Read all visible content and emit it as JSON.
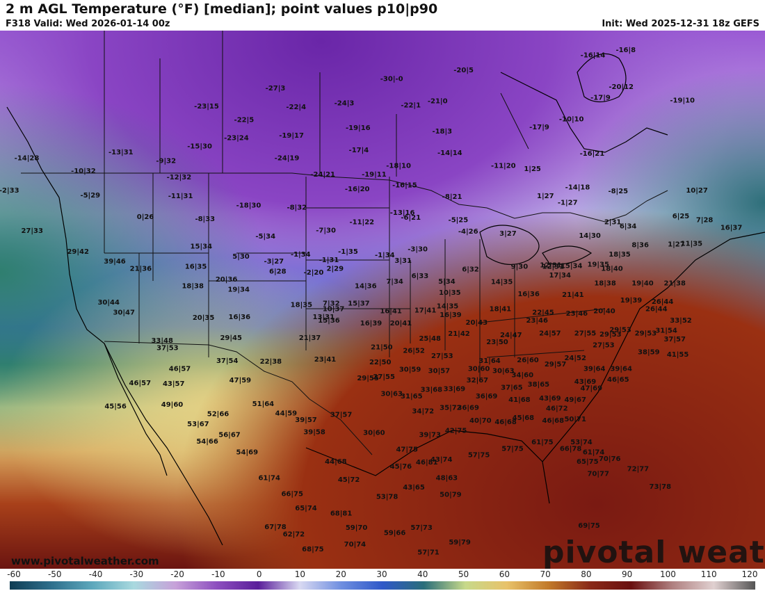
{
  "header": {
    "title": "2 m AGL Temperature (°F) [median]; point values p10|p90",
    "valid": "F318 Valid: Wed 2026-01-14 00z",
    "init": "Init: Wed 2025-12-31 18z GEFS"
  },
  "branding": {
    "website": "www.pivotalweather.com",
    "logo": "pivotal weather"
  },
  "legend": {
    "ticks": [
      "-60",
      "-50",
      "-40",
      "-30",
      "-20",
      "-10",
      "0",
      "10",
      "20",
      "30",
      "40",
      "50",
      "60",
      "70",
      "80",
      "90",
      "100",
      "110",
      "120"
    ],
    "colors": [
      "#0f3d54",
      "#2e6f8c",
      "#5da8bc",
      "#a9d9df",
      "#c7a1d9",
      "#8d4fbf",
      "#5a1e9a",
      "#d9d9f2",
      "#6f8fe0",
      "#2f58c8",
      "#2a6e7a",
      "#c7d98a",
      "#e8c26a",
      "#c27a2a",
      "#8a2a18",
      "#6a1010",
      "#b08080",
      "#e0d0d0",
      "#555555"
    ]
  },
  "colors": {
    "arctic": "#7a2fb3",
    "cold": "#4b6fd8",
    "cool": "#9fb6ec",
    "mild": "#3d8a78",
    "warm": "#d8c37a",
    "hot": "#a8401a",
    "ocean_hot": "#7a1a12"
  },
  "points": [
    {
      "text": "-14|28",
      "x": -156.5,
      "y": 60.7
    },
    {
      "text": "-23|15",
      "x": -133.0,
      "y": 68.4
    },
    {
      "text": "-27|3",
      "x": -124.0,
      "y": 71.1
    },
    {
      "text": "-22|4",
      "x": -121.3,
      "y": 68.3
    },
    {
      "text": "-22|5",
      "x": -128.1,
      "y": 66.4
    },
    {
      "text": "-24|3",
      "x": -115.0,
      "y": 68.9
    },
    {
      "text": "-30|-0",
      "x": -108.8,
      "y": 72.5
    },
    {
      "text": "-20|5",
      "x": -99.4,
      "y": 73.8
    },
    {
      "text": "-16|14",
      "x": -82.5,
      "y": 76.0
    },
    {
      "text": "-16|8",
      "x": -78.2,
      "y": 76.8
    },
    {
      "text": "-13|31",
      "x": -144.2,
      "y": 61.6
    },
    {
      "text": "-10|32",
      "x": -149.1,
      "y": 58.8
    },
    {
      "text": "-2|33",
      "x": -158.8,
      "y": 55.9
    },
    {
      "text": "-9|32",
      "x": -138.3,
      "y": 60.3
    },
    {
      "text": "-15|30",
      "x": -133.9,
      "y": 62.5
    },
    {
      "text": "-23|24",
      "x": -129.1,
      "y": 63.7
    },
    {
      "text": "-19|17",
      "x": -121.9,
      "y": 64.1
    },
    {
      "text": "-19|16",
      "x": -113.2,
      "y": 65.2
    },
    {
      "text": "-22|1",
      "x": -106.3,
      "y": 68.6
    },
    {
      "text": "-21|0",
      "x": -102.8,
      "y": 69.2
    },
    {
      "text": "-17|9",
      "x": -81.5,
      "y": 69.7
    },
    {
      "text": "-20|12",
      "x": -78.8,
      "y": 71.3
    },
    {
      "text": "-19|10",
      "x": -70.8,
      "y": 69.3
    },
    {
      "text": "-10|10",
      "x": -85.3,
      "y": 66.5
    },
    {
      "text": "-17|4",
      "x": -113.1,
      "y": 61.9
    },
    {
      "text": "-18|3",
      "x": -102.2,
      "y": 64.7
    },
    {
      "text": "-5|29",
      "x": -148.2,
      "y": 55.2
    },
    {
      "text": "-12|32",
      "x": -136.6,
      "y": 57.9
    },
    {
      "text": "-24|19",
      "x": -122.5,
      "y": 60.7
    },
    {
      "text": "-17|9",
      "x": -89.5,
      "y": 65.3
    },
    {
      "text": "27|33",
      "x": -155.8,
      "y": 49.9
    },
    {
      "text": "-11|31",
      "x": -136.4,
      "y": 55.1
    },
    {
      "text": "0|26",
      "x": -141.0,
      "y": 52.0
    },
    {
      "text": "-24|21",
      "x": -117.8,
      "y": 58.3
    },
    {
      "text": "-8|33",
      "x": -133.2,
      "y": 51.7
    },
    {
      "text": "-18|30",
      "x": -127.5,
      "y": 53.7
    },
    {
      "text": "-19|11",
      "x": -111.1,
      "y": 58.3
    },
    {
      "text": "-18|10",
      "x": -107.9,
      "y": 59.6
    },
    {
      "text": "-14|14",
      "x": -101.2,
      "y": 61.5
    },
    {
      "text": "-16|21",
      "x": -82.6,
      "y": 61.4
    },
    {
      "text": "10|27",
      "x": -68.9,
      "y": 55.9
    },
    {
      "text": "29|42",
      "x": -149.8,
      "y": 46.8
    },
    {
      "text": "39|46",
      "x": -145.0,
      "y": 45.4
    },
    {
      "text": "-8|32",
      "x": -121.2,
      "y": 53.4
    },
    {
      "text": "-16|20",
      "x": -113.3,
      "y": 56.1
    },
    {
      "text": "-16|15",
      "x": -107.1,
      "y": 56.7
    },
    {
      "text": "-11|20",
      "x": -94.2,
      "y": 59.6
    },
    {
      "text": "1|25",
      "x": -90.4,
      "y": 59.1
    },
    {
      "text": "-14|18",
      "x": -84.5,
      "y": 56.4
    },
    {
      "text": "-8|25",
      "x": -79.2,
      "y": 55.8
    },
    {
      "text": "6|25",
      "x": -71.0,
      "y": 52.1
    },
    {
      "text": "7|28",
      "x": -67.9,
      "y": 51.5
    },
    {
      "text": "15|34",
      "x": -133.7,
      "y": 47.6
    },
    {
      "text": "-5|34",
      "x": -125.3,
      "y": 49.1
    },
    {
      "text": "-7|30",
      "x": -117.4,
      "y": 50.0
    },
    {
      "text": "-11|22",
      "x": -112.7,
      "y": 51.2
    },
    {
      "text": "-13|16",
      "x": -107.4,
      "y": 52.6
    },
    {
      "text": "-8|21",
      "x": -100.9,
      "y": 55.0
    },
    {
      "text": "1|27",
      "x": -88.7,
      "y": 55.1
    },
    {
      "text": "-1|27",
      "x": -85.8,
      "y": 54.1
    },
    {
      "text": "2|31",
      "x": -79.9,
      "y": 51.2
    },
    {
      "text": "1|27",
      "x": -71.6,
      "y": 47.9
    },
    {
      "text": "21|36",
      "x": -141.6,
      "y": 44.3
    },
    {
      "text": "16|35",
      "x": -134.4,
      "y": 44.6
    },
    {
      "text": "5|30",
      "x": -128.5,
      "y": 46.1
    },
    {
      "text": "-3|27",
      "x": -124.2,
      "y": 45.4
    },
    {
      "text": "-1|34",
      "x": -120.7,
      "y": 46.4
    },
    {
      "text": "-6|21",
      "x": -106.3,
      "y": 51.9
    },
    {
      "text": "6|34",
      "x": -77.9,
      "y": 50.6
    },
    {
      "text": "30|44",
      "x": -145.8,
      "y": 39.3
    },
    {
      "text": "-5|25",
      "x": -100.1,
      "y": 51.5
    },
    {
      "text": "8|36",
      "x": -76.3,
      "y": 47.8
    },
    {
      "text": "11|35",
      "x": -69.6,
      "y": 48.0
    },
    {
      "text": "16|37",
      "x": -64.4,
      "y": 50.4
    },
    {
      "text": "14|30",
      "x": -82.9,
      "y": 49.2
    },
    {
      "text": "18|35",
      "x": -79.0,
      "y": 46.4
    },
    {
      "text": "3|27",
      "x": -93.6,
      "y": 49.5
    },
    {
      "text": "-4|26",
      "x": -98.8,
      "y": 49.8
    },
    {
      "text": "-1|31",
      "x": -117.0,
      "y": 45.6
    },
    {
      "text": "-1|35",
      "x": -114.5,
      "y": 46.8
    },
    {
      "text": "-1|34",
      "x": -109.7,
      "y": 46.3
    },
    {
      "text": "30|47",
      "x": -143.8,
      "y": 37.8
    },
    {
      "text": "18|38",
      "x": -134.8,
      "y": 41.7
    },
    {
      "text": "20|36",
      "x": -130.4,
      "y": 42.7
    },
    {
      "text": "6|28",
      "x": -123.7,
      "y": 43.9
    },
    {
      "text": "-2|20",
      "x": -119.0,
      "y": 43.7
    },
    {
      "text": "2|29",
      "x": -116.2,
      "y": 44.3
    },
    {
      "text": "-3|30",
      "x": -105.4,
      "y": 47.2
    },
    {
      "text": "12|31",
      "x": -88.0,
      "y": 44.8
    },
    {
      "text": "9|30",
      "x": -92.1,
      "y": 44.6
    },
    {
      "text": "12|31",
      "x": -87.7,
      "y": 44.6
    },
    {
      "text": "19|35",
      "x": -81.8,
      "y": 44.9
    },
    {
      "text": "18|40",
      "x": -80.0,
      "y": 44.3
    },
    {
      "text": "21|38",
      "x": -71.8,
      "y": 42.1
    },
    {
      "text": "33|48",
      "x": -138.8,
      "y": 33.6
    },
    {
      "text": "19|34",
      "x": -128.8,
      "y": 41.2
    },
    {
      "text": "3|31",
      "x": -107.3,
      "y": 45.5
    },
    {
      "text": "6|32",
      "x": -98.5,
      "y": 44.2
    },
    {
      "text": "15|34",
      "x": -85.3,
      "y": 44.7
    },
    {
      "text": "17|34",
      "x": -86.8,
      "y": 43.3
    },
    {
      "text": "18|38",
      "x": -80.9,
      "y": 42.1
    },
    {
      "text": "19|40",
      "x": -76.0,
      "y": 42.1
    },
    {
      "text": "26|44",
      "x": -73.4,
      "y": 39.4
    },
    {
      "text": "37|53",
      "x": -138.1,
      "y": 32.5
    },
    {
      "text": "18|35",
      "x": -120.6,
      "y": 38.9
    },
    {
      "text": "6|33",
      "x": -105.1,
      "y": 43.2
    },
    {
      "text": "5|34",
      "x": -101.6,
      "y": 42.4
    },
    {
      "text": "14|35",
      "x": -94.4,
      "y": 42.3
    },
    {
      "text": "21|41",
      "x": -85.1,
      "y": 40.4
    },
    {
      "text": "19|39",
      "x": -77.5,
      "y": 39.6
    },
    {
      "text": "26|44",
      "x": -74.2,
      "y": 38.3
    },
    {
      "text": "33|52",
      "x": -71.0,
      "y": 36.6
    },
    {
      "text": "14|36",
      "x": -112.2,
      "y": 41.7
    },
    {
      "text": "7|34",
      "x": -108.4,
      "y": 42.4
    },
    {
      "text": "10|35",
      "x": -101.2,
      "y": 40.7
    },
    {
      "text": "16|36",
      "x": -90.9,
      "y": 40.5
    },
    {
      "text": "23|46",
      "x": -84.6,
      "y": 37.6
    },
    {
      "text": "20|40",
      "x": -81.0,
      "y": 38.0
    },
    {
      "text": "20|35",
      "x": -133.4,
      "y": 37.0
    },
    {
      "text": "16|36",
      "x": -128.7,
      "y": 37.1
    },
    {
      "text": "7|32",
      "x": -116.7,
      "y": 39.1
    },
    {
      "text": "10|37",
      "x": -116.4,
      "y": 38.3
    },
    {
      "text": "15|37",
      "x": -113.1,
      "y": 39.1
    },
    {
      "text": "14|35",
      "x": -101.5,
      "y": 38.7
    },
    {
      "text": "18|41",
      "x": -94.6,
      "y": 38.3
    },
    {
      "text": "22|45",
      "x": -89.0,
      "y": 37.8
    },
    {
      "text": "29|53",
      "x": -75.6,
      "y": 34.7
    },
    {
      "text": "31|54",
      "x": -72.9,
      "y": 35.1
    },
    {
      "text": "13|31",
      "x": -117.7,
      "y": 37.1
    },
    {
      "text": "16|41",
      "x": -108.9,
      "y": 38.0
    },
    {
      "text": "17|41",
      "x": -104.4,
      "y": 38.1
    },
    {
      "text": "16|39",
      "x": -101.1,
      "y": 37.4
    },
    {
      "text": "20|43",
      "x": -97.7,
      "y": 36.3
    },
    {
      "text": "23|46",
      "x": -89.8,
      "y": 36.6
    },
    {
      "text": "29|53",
      "x": -78.9,
      "y": 35.2
    },
    {
      "text": "37|57",
      "x": -71.8,
      "y": 33.8
    },
    {
      "text": "45|56",
      "x": -144.9,
      "y": 23.8
    },
    {
      "text": "15|36",
      "x": -117.0,
      "y": 36.6
    },
    {
      "text": "16|39",
      "x": -111.5,
      "y": 36.2
    },
    {
      "text": "20|41",
      "x": -107.6,
      "y": 36.2
    },
    {
      "text": "24|47",
      "x": -93.2,
      "y": 34.4
    },
    {
      "text": "24|57",
      "x": -88.1,
      "y": 34.7
    },
    {
      "text": "27|55",
      "x": -83.5,
      "y": 34.7
    },
    {
      "text": "29|53",
      "x": -80.2,
      "y": 34.5
    },
    {
      "text": "46|57",
      "x": -141.7,
      "y": 27.3
    },
    {
      "text": "29|45",
      "x": -129.8,
      "y": 34.0
    },
    {
      "text": "21|37",
      "x": -119.5,
      "y": 34.0
    },
    {
      "text": "21|42",
      "x": -100.0,
      "y": 34.6
    },
    {
      "text": "23|50",
      "x": -95.0,
      "y": 33.4
    },
    {
      "text": "27|53",
      "x": -81.1,
      "y": 32.9
    },
    {
      "text": "38|59",
      "x": -75.2,
      "y": 31.9
    },
    {
      "text": "41|55",
      "x": -71.4,
      "y": 31.5
    },
    {
      "text": "46|57",
      "x": -136.5,
      "y": 29.4
    },
    {
      "text": "37|54",
      "x": -130.3,
      "y": 30.6
    },
    {
      "text": "25|48",
      "x": -103.8,
      "y": 33.9
    },
    {
      "text": "26|60",
      "x": -91.0,
      "y": 30.7
    },
    {
      "text": "29|57",
      "x": -87.4,
      "y": 30.1
    },
    {
      "text": "24|52",
      "x": -84.8,
      "y": 31.0
    },
    {
      "text": "43|57",
      "x": -137.3,
      "y": 27.2
    },
    {
      "text": "22|38",
      "x": -124.6,
      "y": 30.5
    },
    {
      "text": "23|41",
      "x": -117.5,
      "y": 30.8
    },
    {
      "text": "21|50",
      "x": -110.1,
      "y": 32.6
    },
    {
      "text": "26|52",
      "x": -105.9,
      "y": 32.1
    },
    {
      "text": "27|53",
      "x": -102.2,
      "y": 31.3
    },
    {
      "text": "31|64",
      "x": -96.0,
      "y": 30.6
    },
    {
      "text": "39|64",
      "x": -82.3,
      "y": 29.4
    },
    {
      "text": "39|64",
      "x": -78.8,
      "y": 29.4
    },
    {
      "text": "49|60",
      "x": -137.5,
      "y": 24.1
    },
    {
      "text": "47|59",
      "x": -128.6,
      "y": 27.7
    },
    {
      "text": "22|50",
      "x": -110.3,
      "y": 30.4
    },
    {
      "text": "30|60",
      "x": -97.4,
      "y": 29.4
    },
    {
      "text": "30|63",
      "x": -94.2,
      "y": 29.1
    },
    {
      "text": "34|60",
      "x": -91.7,
      "y": 28.5
    },
    {
      "text": "43|69",
      "x": -83.5,
      "y": 27.5
    },
    {
      "text": "46|65",
      "x": -79.2,
      "y": 27.8
    },
    {
      "text": "53|67",
      "x": -134.1,
      "y": 21.2
    },
    {
      "text": "52|66",
      "x": -131.5,
      "y": 22.7
    },
    {
      "text": "51|64",
      "x": -125.6,
      "y": 24.2
    },
    {
      "text": "29|55",
      "x": -111.9,
      "y": 28.0
    },
    {
      "text": "27|55",
      "x": -109.8,
      "y": 28.2
    },
    {
      "text": "30|59",
      "x": -106.4,
      "y": 29.3
    },
    {
      "text": "30|57",
      "x": -102.6,
      "y": 29.1
    },
    {
      "text": "32|67",
      "x": -97.6,
      "y": 27.7
    },
    {
      "text": "37|65",
      "x": -93.1,
      "y": 26.6
    },
    {
      "text": "38|65",
      "x": -89.6,
      "y": 27.1
    },
    {
      "text": "47|69",
      "x": -82.7,
      "y": 26.5
    },
    {
      "text": "54|66",
      "x": -132.9,
      "y": 18.6
    },
    {
      "text": "56|67",
      "x": -130.0,
      "y": 19.6
    },
    {
      "text": "44|59",
      "x": -122.6,
      "y": 22.8
    },
    {
      "text": "30|63",
      "x": -108.8,
      "y": 25.7
    },
    {
      "text": "33|68",
      "x": -103.6,
      "y": 26.3
    },
    {
      "text": "31|65",
      "x": -106.2,
      "y": 25.3
    },
    {
      "text": "33|69",
      "x": -100.6,
      "y": 26.4
    },
    {
      "text": "36|69",
      "x": -96.4,
      "y": 25.3
    },
    {
      "text": "41|68",
      "x": -92.1,
      "y": 24.8
    },
    {
      "text": "43|69",
      "x": -88.1,
      "y": 25.0
    },
    {
      "text": "49|67",
      "x": -84.8,
      "y": 24.8
    },
    {
      "text": "39|57",
      "x": -120.0,
      "y": 21.8
    },
    {
      "text": "37|57",
      "x": -115.4,
      "y": 22.6
    },
    {
      "text": "34|72",
      "x": -104.7,
      "y": 23.1
    },
    {
      "text": "35|72",
      "x": -101.1,
      "y": 23.6
    },
    {
      "text": "36|69",
      "x": -98.8,
      "y": 23.6
    },
    {
      "text": "46|72",
      "x": -87.2,
      "y": 23.5
    },
    {
      "text": "54|69",
      "x": -127.7,
      "y": 17.0
    },
    {
      "text": "39|58",
      "x": -118.9,
      "y": 20.0
    },
    {
      "text": "30|60",
      "x": -111.1,
      "y": 19.9
    },
    {
      "text": "40|70",
      "x": -97.2,
      "y": 21.7
    },
    {
      "text": "46|68",
      "x": -93.9,
      "y": 21.5
    },
    {
      "text": "45|68",
      "x": -91.6,
      "y": 22.1
    },
    {
      "text": "46|68",
      "x": -87.7,
      "y": 21.7
    },
    {
      "text": "50|71",
      "x": -84.8,
      "y": 21.9
    },
    {
      "text": "39|73",
      "x": -103.8,
      "y": 19.6
    },
    {
      "text": "42|75",
      "x": -100.4,
      "y": 20.2
    },
    {
      "text": "61|74",
      "x": -124.8,
      "y": 13.2
    },
    {
      "text": "44|68",
      "x": -116.1,
      "y": 15.6
    },
    {
      "text": "47|75",
      "x": -106.8,
      "y": 17.4
    },
    {
      "text": "53|74",
      "x": -84.0,
      "y": 18.5
    },
    {
      "text": "66|75",
      "x": -121.8,
      "y": 10.8
    },
    {
      "text": "46|81",
      "x": -104.2,
      "y": 15.5
    },
    {
      "text": "43|74",
      "x": -102.3,
      "y": 15.9
    },
    {
      "text": "57|75",
      "x": -97.4,
      "y": 16.6
    },
    {
      "text": "57|75",
      "x": -93.0,
      "y": 17.5
    },
    {
      "text": "61|75",
      "x": -89.1,
      "y": 18.5
    },
    {
      "text": "66|78",
      "x": -85.4,
      "y": 17.5
    },
    {
      "text": "61|74",
      "x": -82.4,
      "y": 17.0
    },
    {
      "text": "45|72",
      "x": -114.4,
      "y": 12.9
    },
    {
      "text": "45|76",
      "x": -107.6,
      "y": 14.9
    },
    {
      "text": "65|74",
      "x": -120.0,
      "y": 8.7
    },
    {
      "text": "65|75",
      "x": -83.2,
      "y": 15.6
    },
    {
      "text": "70|76",
      "x": -80.3,
      "y": 16.0
    },
    {
      "text": "67|78",
      "x": -124.0,
      "y": 5.9
    },
    {
      "text": "68|81",
      "x": -115.4,
      "y": 7.9
    },
    {
      "text": "53|78",
      "x": -109.4,
      "y": 10.4
    },
    {
      "text": "43|65",
      "x": -105.9,
      "y": 11.8
    },
    {
      "text": "48|63",
      "x": -101.6,
      "y": 13.2
    },
    {
      "text": "70|77",
      "x": -81.8,
      "y": 13.8
    },
    {
      "text": "62|72",
      "x": -121.6,
      "y": 4.8
    },
    {
      "text": "59|70",
      "x": -113.4,
      "y": 5.8
    },
    {
      "text": "50|79",
      "x": -101.1,
      "y": 10.7
    },
    {
      "text": "72|77",
      "x": -76.6,
      "y": 14.5
    },
    {
      "text": "68|75",
      "x": -119.1,
      "y": 2.6
    },
    {
      "text": "70|74",
      "x": -113.6,
      "y": 3.3
    },
    {
      "text": "59|66",
      "x": -108.4,
      "y": 5.0
    },
    {
      "text": "57|73",
      "x": -104.9,
      "y": 5.8
    },
    {
      "text": "73|78",
      "x": -73.7,
      "y": 11.9
    },
    {
      "text": "57|71",
      "x": -104.0,
      "y": 2.1
    },
    {
      "text": "59|79",
      "x": -99.9,
      "y": 3.6
    },
    {
      "text": "69|75",
      "x": -83.0,
      "y": 6.1
    }
  ]
}
